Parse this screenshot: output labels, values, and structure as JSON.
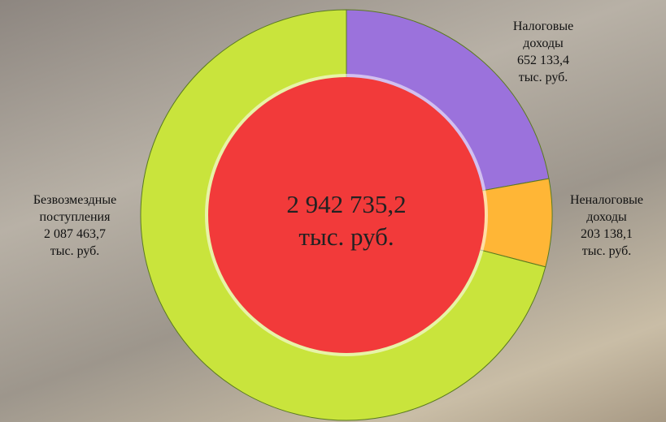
{
  "chart_data": {
    "type": "donut",
    "categories": [
      "Налоговые доходы",
      "Неналоговые доходы",
      "Безвозмездные поступления"
    ],
    "values": [
      652133.4,
      203138.1,
      2087463.7
    ],
    "value_labels": [
      "652 133,4",
      "203 138,1",
      "2 087 463,7"
    ],
    "colors": [
      "#9b72dc",
      "#ffb636",
      "#c9e43c"
    ],
    "unit": "тыс. руб.",
    "center_text": "2 942 735,2",
    "center_color": "#f23a3a"
  }
}
